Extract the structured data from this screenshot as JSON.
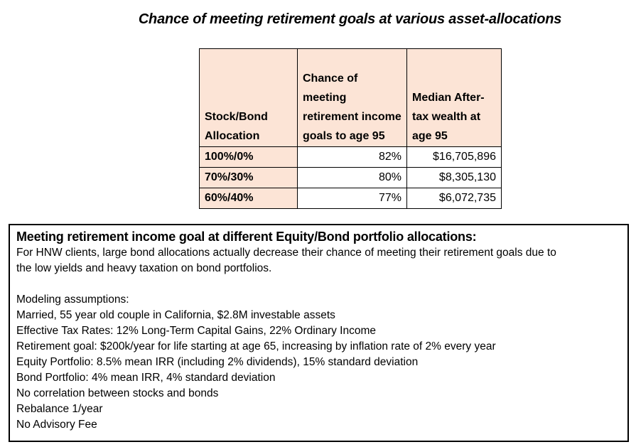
{
  "page": {
    "title": "Chance of meeting retirement goals at various asset-allocations"
  },
  "table": {
    "header_fill": "#fce4d6",
    "border_color": "#000000",
    "columns": [
      {
        "header": "Stock/Bond Allocation"
      },
      {
        "header": "Chance of meeting retirement income goals to age 95"
      },
      {
        "header": "Median After-tax wealth at age 95"
      }
    ],
    "rows": [
      {
        "allocation": "100%/0%",
        "chance": "82%",
        "median_wealth": "$16,705,896"
      },
      {
        "allocation": "70%/30%",
        "chance": "80%",
        "median_wealth": "$8,305,130"
      },
      {
        "allocation": "60%/40%",
        "chance": "77%",
        "median_wealth": "$6,072,735"
      }
    ]
  },
  "info_box": {
    "heading": "Meeting retirement income goal at different Equity/Bond portfolio allocations:",
    "intro_lines": [
      "For HNW clients, large bond allocations actually decrease their chance of meeting their retirement goals due to",
      "the low yields and heavy taxation on bond portfolios."
    ],
    "assumptions_label": "Modeling assumptions:",
    "assumptions": [
      "Married, 55 year old couple in California, $2.8M investable assets",
      "Effective Tax Rates: 12% Long-Term Capital Gains, 22% Ordinary Income",
      "Retirement goal: $200k/year for life starting at age 65, increasing by inflation rate of 2% every year",
      "Equity Portfolio: 8.5% mean IRR (including 2% dividends), 15% standard deviation",
      "Bond Portfolio: 4% mean IRR, 4% standard deviation",
      "No correlation between stocks and bonds",
      "Rebalance 1/year",
      "No Advisory Fee"
    ]
  }
}
